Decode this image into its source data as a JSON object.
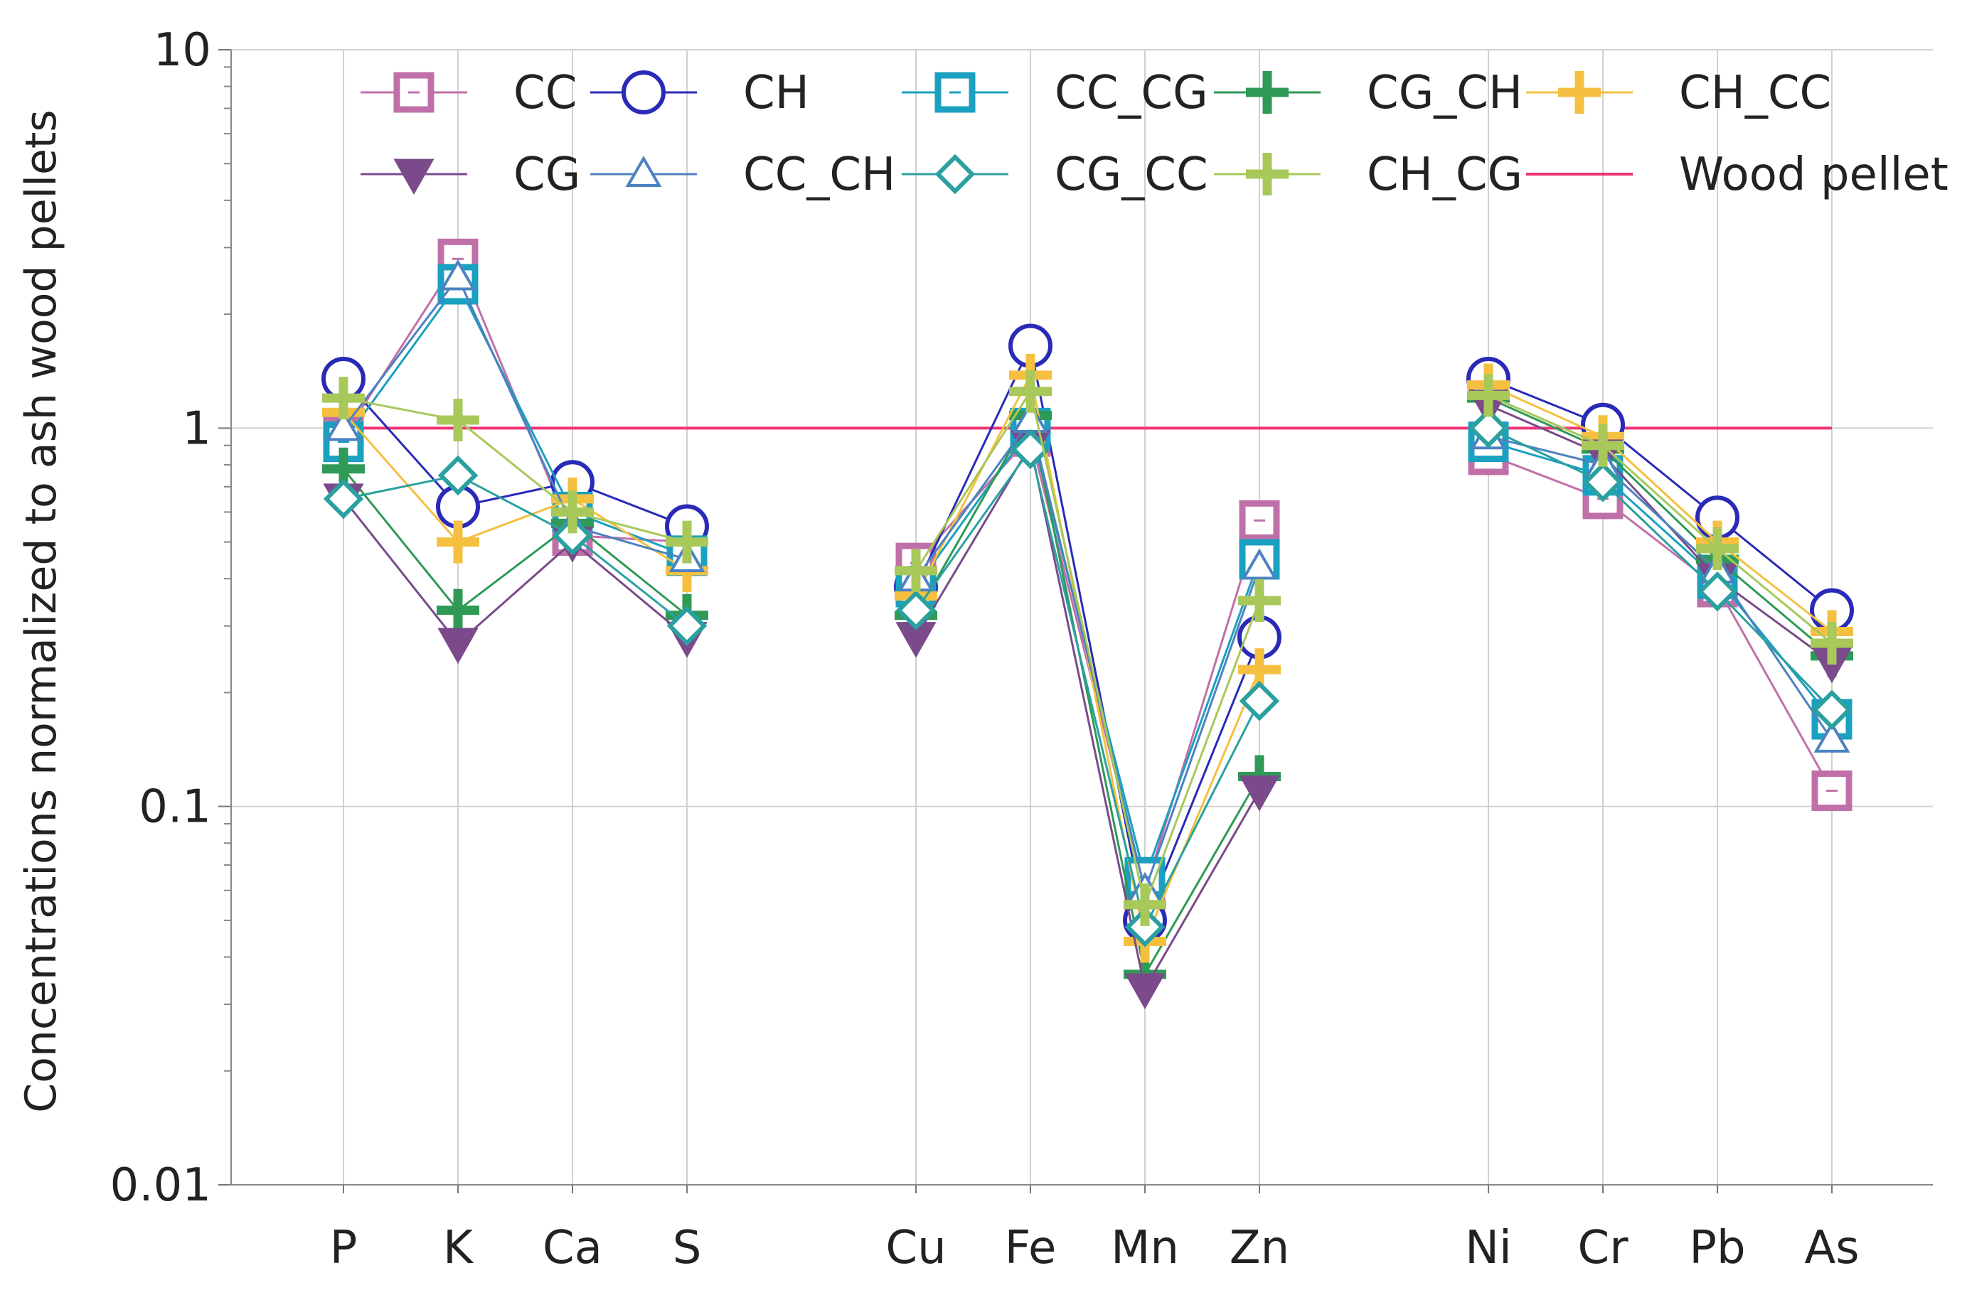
{
  "chart_data": {
    "type": "line",
    "yscale": "log",
    "ylim": [
      0.01,
      10
    ],
    "title": "",
    "xlabel": "",
    "ylabel": "Concentrations normalized to ash wood pellets",
    "yticks": [
      "10",
      "1",
      "0.1",
      "0.01"
    ],
    "categories": [
      "P",
      "K",
      "Ca",
      "S",
      "Cu",
      "Fe",
      "Mn",
      "Zn",
      "Ni",
      "Cr",
      "Pb",
      "As"
    ],
    "category_positions": [
      0,
      1,
      2,
      3,
      5,
      6,
      7,
      8,
      10,
      11,
      12,
      13
    ],
    "reference_line": {
      "name": "Wood pellet",
      "value": 1,
      "color": "#ee3377"
    },
    "series": [
      {
        "name": "CC",
        "color": "#c070a8",
        "marker": "square",
        "values": [
          0.95,
          2.8,
          0.52,
          0.5,
          0.44,
          0.95,
          0.06,
          0.57,
          0.85,
          0.65,
          0.38,
          0.11
        ]
      },
      {
        "name": "CH",
        "color": "#2a2ab8",
        "marker": "circle",
        "values": [
          1.35,
          0.62,
          0.72,
          0.55,
          0.38,
          1.65,
          0.05,
          0.28,
          1.35,
          1.02,
          0.58,
          0.33
        ]
      },
      {
        "name": "CC_CG",
        "color": "#1aa0c0",
        "marker": "square",
        "values": [
          0.92,
          2.4,
          0.6,
          0.46,
          0.38,
          1.0,
          0.065,
          0.45,
          0.92,
          0.75,
          0.4,
          0.17
        ]
      },
      {
        "name": "CG_CH",
        "color": "#2e9a55",
        "marker": "plus",
        "values": [
          0.78,
          0.33,
          0.56,
          0.32,
          0.32,
          1.08,
          0.036,
          0.12,
          1.2,
          0.88,
          0.45,
          0.25
        ]
      },
      {
        "name": "CH_CC",
        "color": "#f5c040",
        "marker": "plus",
        "values": [
          1.1,
          0.5,
          0.65,
          0.42,
          0.36,
          1.38,
          0.044,
          0.23,
          1.3,
          0.95,
          0.5,
          0.29
        ]
      },
      {
        "name": "CG",
        "color": "#7a4a8a",
        "marker": "triangle-down",
        "values": [
          0.65,
          0.27,
          0.5,
          0.28,
          0.28,
          0.9,
          0.033,
          0.11,
          1.15,
          0.85,
          0.4,
          0.24
        ]
      },
      {
        "name": "CC_CH",
        "color": "#4c82c0",
        "marker": "triangle-up",
        "values": [
          1.0,
          2.5,
          0.55,
          0.45,
          0.4,
          1.05,
          0.06,
          0.43,
          0.95,
          0.8,
          0.42,
          0.15
        ]
      },
      {
        "name": "CG_CC",
        "color": "#2aa0a0",
        "marker": "diamond",
        "values": [
          0.65,
          0.75,
          0.52,
          0.3,
          0.33,
          0.88,
          0.048,
          0.19,
          1.0,
          0.72,
          0.37,
          0.18
        ]
      },
      {
        "name": "CH_CG",
        "color": "#a8c85a",
        "marker": "plus",
        "values": [
          1.2,
          1.05,
          0.6,
          0.5,
          0.42,
          1.25,
          0.055,
          0.35,
          1.22,
          0.9,
          0.48,
          0.27
        ]
      }
    ],
    "legend": {
      "position": "top",
      "rows": [
        [
          "CC",
          "CH",
          "CC_CG",
          "CG_CH",
          "CH_CC"
        ],
        [
          "CG",
          "CC_CH",
          "CG_CC",
          "CH_CG",
          "Wood pellet"
        ]
      ]
    },
    "grid": true
  }
}
